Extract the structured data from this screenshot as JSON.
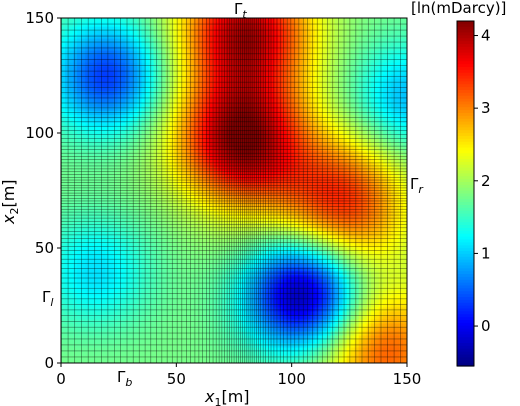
{
  "chart_data": {
    "type": "heatmap",
    "xlabel": "x",
    "xlabel_sub": "1",
    "xlabel_unit": "[m]",
    "ylabel": "x",
    "ylabel_sub": "2",
    "ylabel_unit": "[m]",
    "xlim": [
      0,
      150
    ],
    "ylim": [
      0,
      150
    ],
    "xticks": [
      0,
      50,
      100,
      150
    ],
    "yticks": [
      0,
      50,
      100,
      150
    ],
    "xtick_labels": [
      "0",
      "50",
      "100",
      "150"
    ],
    "ytick_labels": [
      "0",
      "50",
      "100",
      "150"
    ],
    "colorbar": {
      "label": "[ln(mDarcy)]",
      "range": [
        -0.55,
        4.2
      ],
      "ticks": [
        0,
        1,
        2,
        3,
        4
      ],
      "tick_labels": [
        "0",
        "1",
        "2",
        "3",
        "4"
      ],
      "colormap": "jet"
    },
    "boundary_labels": {
      "top": {
        "text": "Γ",
        "sub": "t",
        "position": "top edge, near x=80"
      },
      "bottom": {
        "text": "Γ",
        "sub": "b",
        "position": "bottom edge, near x=27"
      },
      "left": {
        "text": "Γ",
        "sub": "l",
        "position": "left edge, near y=28"
      },
      "right": {
        "text": "Γ",
        "sub": "r",
        "position": "right edge, near y=75"
      }
    },
    "field_features": [
      {
        "kind": "high",
        "x": 78,
        "y": 97,
        "value": 4.1
      },
      {
        "kind": "high",
        "x": 80,
        "y": 145,
        "value": 3.9
      },
      {
        "kind": "high",
        "x": 122,
        "y": 70,
        "value": 3.4
      },
      {
        "kind": "high",
        "x": 140,
        "y": 5,
        "value": 3.2
      },
      {
        "kind": "low",
        "x": 105,
        "y": 30,
        "value": -0.5
      },
      {
        "kind": "low",
        "x": 20,
        "y": 125,
        "value": 0.3
      },
      {
        "kind": "low",
        "x": 150,
        "y": 115,
        "value": 0.9
      },
      {
        "kind": "low",
        "x": 15,
        "y": 40,
        "value": 1.1
      }
    ],
    "grid": {
      "cells_x": 80,
      "cells_y": 80,
      "type": "non-uniform mesh, refined near x1=80"
    }
  }
}
